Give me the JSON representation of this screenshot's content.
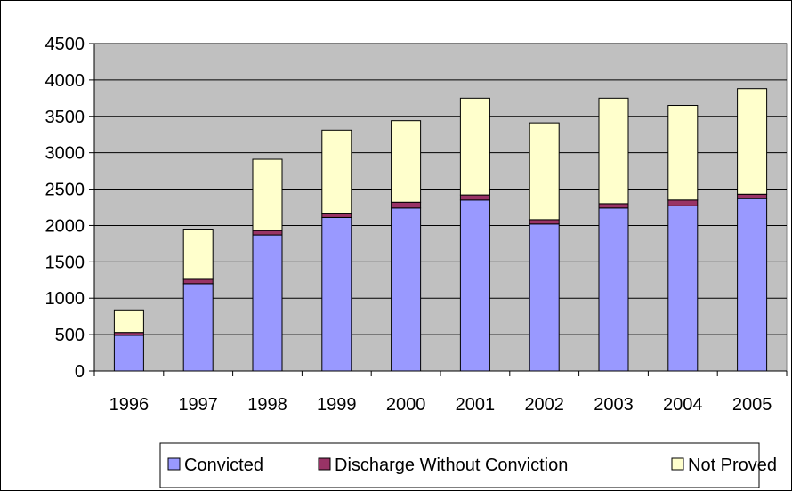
{
  "chart_data": {
    "type": "bar",
    "stacked": true,
    "title": "",
    "xlabel": "",
    "ylabel": "",
    "ylim": [
      0,
      4500
    ],
    "yticks": [
      0,
      500,
      1000,
      1500,
      2000,
      2500,
      3000,
      3500,
      4000,
      4500
    ],
    "grid": true,
    "legend_position": "bottom",
    "categories": [
      "1996",
      "1997",
      "1998",
      "1999",
      "2000",
      "2001",
      "2002",
      "2003",
      "2004",
      "2005"
    ],
    "series": [
      {
        "name": "Convicted",
        "color": "#9999ff",
        "values": [
          490,
          1200,
          1870,
          2110,
          2240,
          2350,
          2020,
          2240,
          2270,
          2370
        ]
      },
      {
        "name": "Discharge Without Conviction",
        "color": "#993366",
        "values": [
          40,
          60,
          60,
          60,
          80,
          70,
          60,
          60,
          80,
          60
        ]
      },
      {
        "name": "Not Proved",
        "color": "#ffffcc",
        "values": [
          310,
          690,
          980,
          1140,
          1120,
          1330,
          1330,
          1450,
          1300,
          1450
        ]
      }
    ],
    "plot_background": "#c0c0c0",
    "gridline_color": "#000000"
  }
}
